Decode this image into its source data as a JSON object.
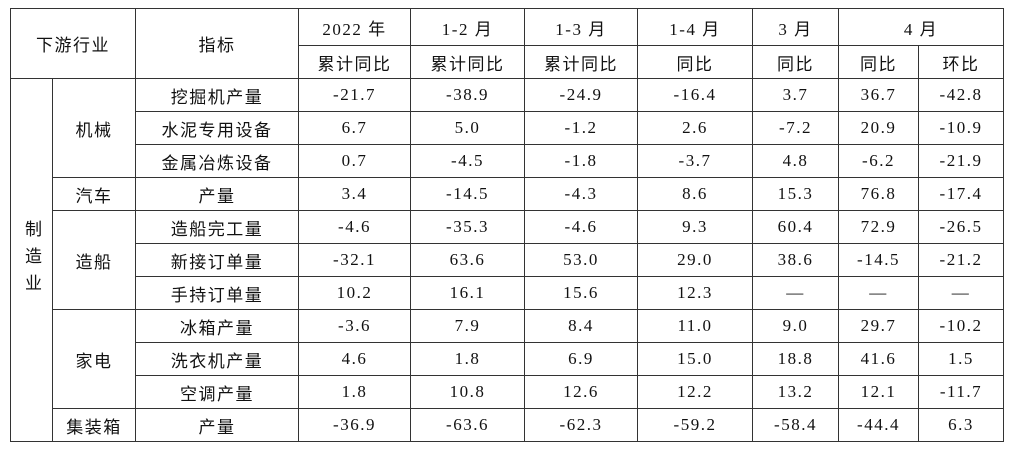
{
  "table": {
    "header_row1": [
      "下游行业",
      "指标",
      "2022 年",
      "1-2 月",
      "1-3 月",
      "1-4 月",
      "3 月",
      "4 月"
    ],
    "header_row2": [
      "累计同比",
      "累计同比",
      "累计同比",
      "同比",
      "同比",
      "同比",
      "环比"
    ],
    "sector": "制造业",
    "groups": [
      {
        "label": "机械",
        "rows": [
          {
            "indicator": "挖掘机产量",
            "values": [
              "-21.7",
              "-38.9",
              "-24.9",
              "-16.4",
              "3.7",
              "36.7",
              "-42.8"
            ]
          },
          {
            "indicator": "水泥专用设备",
            "values": [
              "6.7",
              "5.0",
              "-1.2",
              "2.6",
              "-7.2",
              "20.9",
              "-10.9"
            ]
          },
          {
            "indicator": "金属冶炼设备",
            "values": [
              "0.7",
              "-4.5",
              "-1.8",
              "-3.7",
              "4.8",
              "-6.2",
              "-21.9"
            ]
          }
        ]
      },
      {
        "label": "汽车",
        "rows": [
          {
            "indicator": "产量",
            "values": [
              "3.4",
              "-14.5",
              "-4.3",
              "8.6",
              "15.3",
              "76.8",
              "-17.4"
            ]
          }
        ]
      },
      {
        "label": "造船",
        "rows": [
          {
            "indicator": "造船完工量",
            "values": [
              "-4.6",
              "-35.3",
              "-4.6",
              "9.3",
              "60.4",
              "72.9",
              "-26.5"
            ]
          },
          {
            "indicator": "新接订单量",
            "values": [
              "-32.1",
              "63.6",
              "53.0",
              "29.0",
              "38.6",
              "-14.5",
              "-21.2"
            ]
          },
          {
            "indicator": "手持订单量",
            "values": [
              "10.2",
              "16.1",
              "15.6",
              "12.3",
              "—",
              "—",
              "—"
            ]
          }
        ]
      },
      {
        "label": "家电",
        "rows": [
          {
            "indicator": "冰箱产量",
            "values": [
              "-3.6",
              "7.9",
              "8.4",
              "11.0",
              "9.0",
              "29.7",
              "-10.2"
            ]
          },
          {
            "indicator": "洗衣机产量",
            "values": [
              "4.6",
              "1.8",
              "6.9",
              "15.0",
              "18.8",
              "41.6",
              "1.5"
            ]
          },
          {
            "indicator": "空调产量",
            "values": [
              "1.8",
              "10.8",
              "12.6",
              "12.2",
              "13.2",
              "12.1",
              "-11.7"
            ]
          }
        ]
      },
      {
        "label": "集装箱",
        "rows": [
          {
            "indicator": "产量",
            "values": [
              "-36.9",
              "-63.6",
              "-62.3",
              "-59.2",
              "-58.4",
              "-44.4",
              "6.3"
            ]
          }
        ]
      }
    ]
  }
}
